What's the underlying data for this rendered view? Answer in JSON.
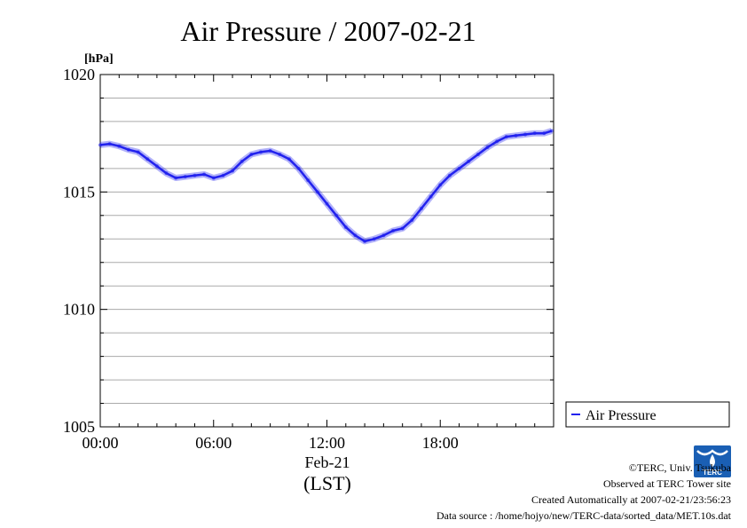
{
  "chart_data": {
    "type": "line",
    "title": "Air Pressure / 2007-02-21",
    "ylabel": "[hPa]",
    "ylim": [
      1005,
      1020
    ],
    "y_ticks": [
      "1020",
      "1015",
      "1010",
      "1005"
    ],
    "xlim": [
      0,
      24
    ],
    "x_ticks": [
      "00:00",
      "06:00",
      "12:00",
      "18:00"
    ],
    "x_date_label": "Feb-21",
    "x_timezone_label": "(LST)",
    "grid": true,
    "legend_position": "right",
    "series": [
      {
        "name": "Air Pressure",
        "color": "#2222ee",
        "x": [
          0,
          0.5,
          1,
          1.5,
          2,
          2.5,
          3,
          3.5,
          4,
          4.5,
          5,
          5.5,
          6,
          6.5,
          7,
          7.5,
          8,
          8.5,
          9,
          9.5,
          10,
          10.5,
          11,
          11.5,
          12,
          12.5,
          13,
          13.5,
          14,
          14.5,
          15,
          15.5,
          16,
          16.5,
          17,
          17.5,
          18,
          18.5,
          19,
          19.5,
          20,
          20.5,
          21,
          21.5,
          22,
          22.5,
          23,
          23.5,
          23.9
        ],
        "y": [
          1017.0,
          1017.05,
          1016.95,
          1016.8,
          1016.7,
          1016.4,
          1016.1,
          1015.8,
          1015.6,
          1015.65,
          1015.7,
          1015.75,
          1015.6,
          1015.7,
          1015.9,
          1016.3,
          1016.6,
          1016.7,
          1016.75,
          1016.6,
          1016.4,
          1016.0,
          1015.5,
          1015.0,
          1014.5,
          1014.0,
          1013.5,
          1013.15,
          1012.9,
          1013.0,
          1013.15,
          1013.35,
          1013.45,
          1013.8,
          1014.3,
          1014.8,
          1015.3,
          1015.7,
          1016.0,
          1016.3,
          1016.6,
          1016.9,
          1017.15,
          1017.35,
          1017.4,
          1017.45,
          1017.5,
          1017.5,
          1017.6
        ]
      }
    ]
  },
  "legend": {
    "label": "Air Pressure"
  },
  "footer": {
    "copyright": "©TERC, Univ. Tsukuba",
    "site": "Observed at TERC Tower site",
    "created": "Created Automatically at 2007-02-21/23:56:23",
    "source": "Data source : /home/hojyo/new/TERC-data/sorted_data/MET.10s.dat"
  },
  "logo": {
    "text": "TERC",
    "color": "#1a5fb4"
  }
}
